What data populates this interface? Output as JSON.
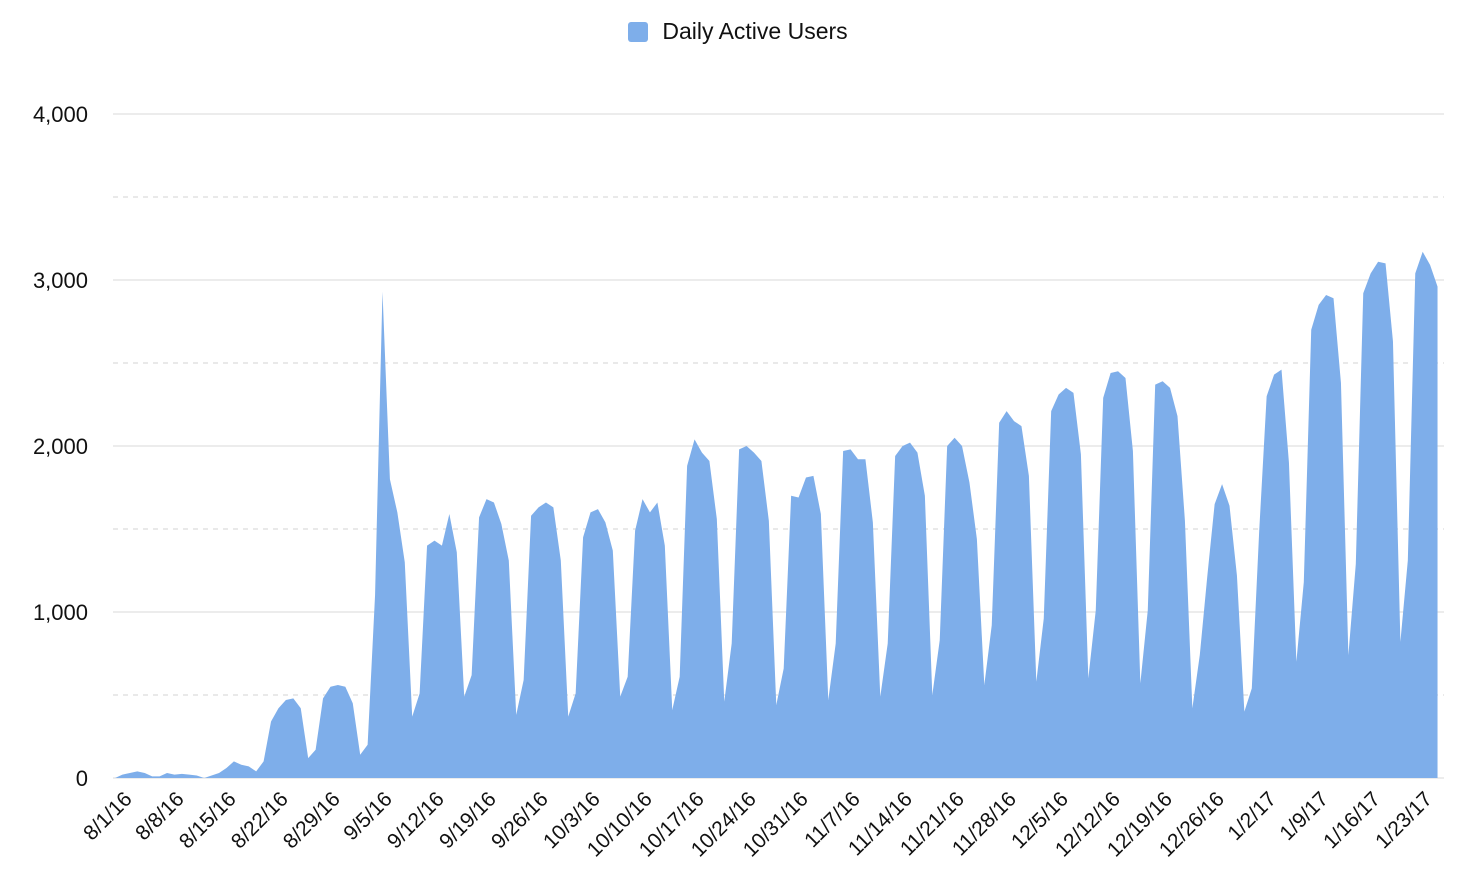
{
  "chart_data": {
    "type": "area",
    "series": [
      {
        "name": "Daily Active Users",
        "color": "#7eaeea",
        "start_date": "2016-07-31",
        "values": [
          0,
          20,
          30,
          40,
          30,
          10,
          10,
          30,
          20,
          25,
          20,
          15,
          0,
          15,
          30,
          60,
          100,
          80,
          70,
          40,
          100,
          340,
          420,
          470,
          480,
          420,
          120,
          170,
          480,
          550,
          560,
          550,
          450,
          140,
          200,
          1100,
          2930,
          1800,
          1600,
          1300,
          370,
          510,
          1400,
          1430,
          1400,
          1590,
          1360,
          490,
          620,
          1570,
          1680,
          1660,
          1530,
          1310,
          380,
          590,
          1580,
          1630,
          1660,
          1630,
          1310,
          370,
          510,
          1450,
          1600,
          1620,
          1540,
          1370,
          490,
          610,
          1490,
          1680,
          1600,
          1660,
          1400,
          410,
          610,
          1880,
          2040,
          1960,
          1910,
          1560,
          460,
          810,
          1980,
          2000,
          1960,
          1910,
          1550,
          440,
          660,
          1700,
          1690,
          1810,
          1820,
          1590,
          470,
          810,
          1970,
          1980,
          1920,
          1920,
          1540,
          490,
          810,
          1940,
          2000,
          2020,
          1960,
          1700,
          500,
          830,
          2000,
          2050,
          2000,
          1780,
          1440,
          560,
          920,
          2140,
          2210,
          2150,
          2120,
          1820,
          580,
          960,
          2210,
          2310,
          2350,
          2320,
          1950,
          600,
          1010,
          2290,
          2440,
          2450,
          2410,
          1970,
          570,
          1010,
          2370,
          2390,
          2350,
          2180,
          1550,
          420,
          740,
          1210,
          1650,
          1770,
          1640,
          1220,
          400,
          540,
          1490,
          2300,
          2430,
          2460,
          1900,
          700,
          1180,
          2700,
          2850,
          2910,
          2890,
          2380,
          740,
          1290,
          2920,
          3040,
          3110,
          3100,
          2630,
          820,
          1310,
          3040,
          3170,
          3090,
          2960
        ]
      }
    ],
    "x_ticks": [
      "8/1/16",
      "8/8/16",
      "8/15/16",
      "8/22/16",
      "8/29/16",
      "9/5/16",
      "9/12/16",
      "9/19/16",
      "9/26/16",
      "10/3/16",
      "10/10/16",
      "10/17/16",
      "10/24/16",
      "10/31/16",
      "11/7/16",
      "11/14/16",
      "11/21/16",
      "11/28/16",
      "12/5/16",
      "12/12/16",
      "12/19/16",
      "12/26/16",
      "1/2/17",
      "1/9/17",
      "1/16/17",
      "1/23/17"
    ],
    "y_ticks": [
      "0",
      "1,000",
      "2,000",
      "3,000",
      "4,000"
    ],
    "ylim": [
      0,
      4000
    ],
    "grid": {
      "major_step": 1000,
      "minor_dashed_step": 500
    },
    "legend_position": "top-center",
    "title": "",
    "xlabel": "",
    "ylabel": ""
  }
}
